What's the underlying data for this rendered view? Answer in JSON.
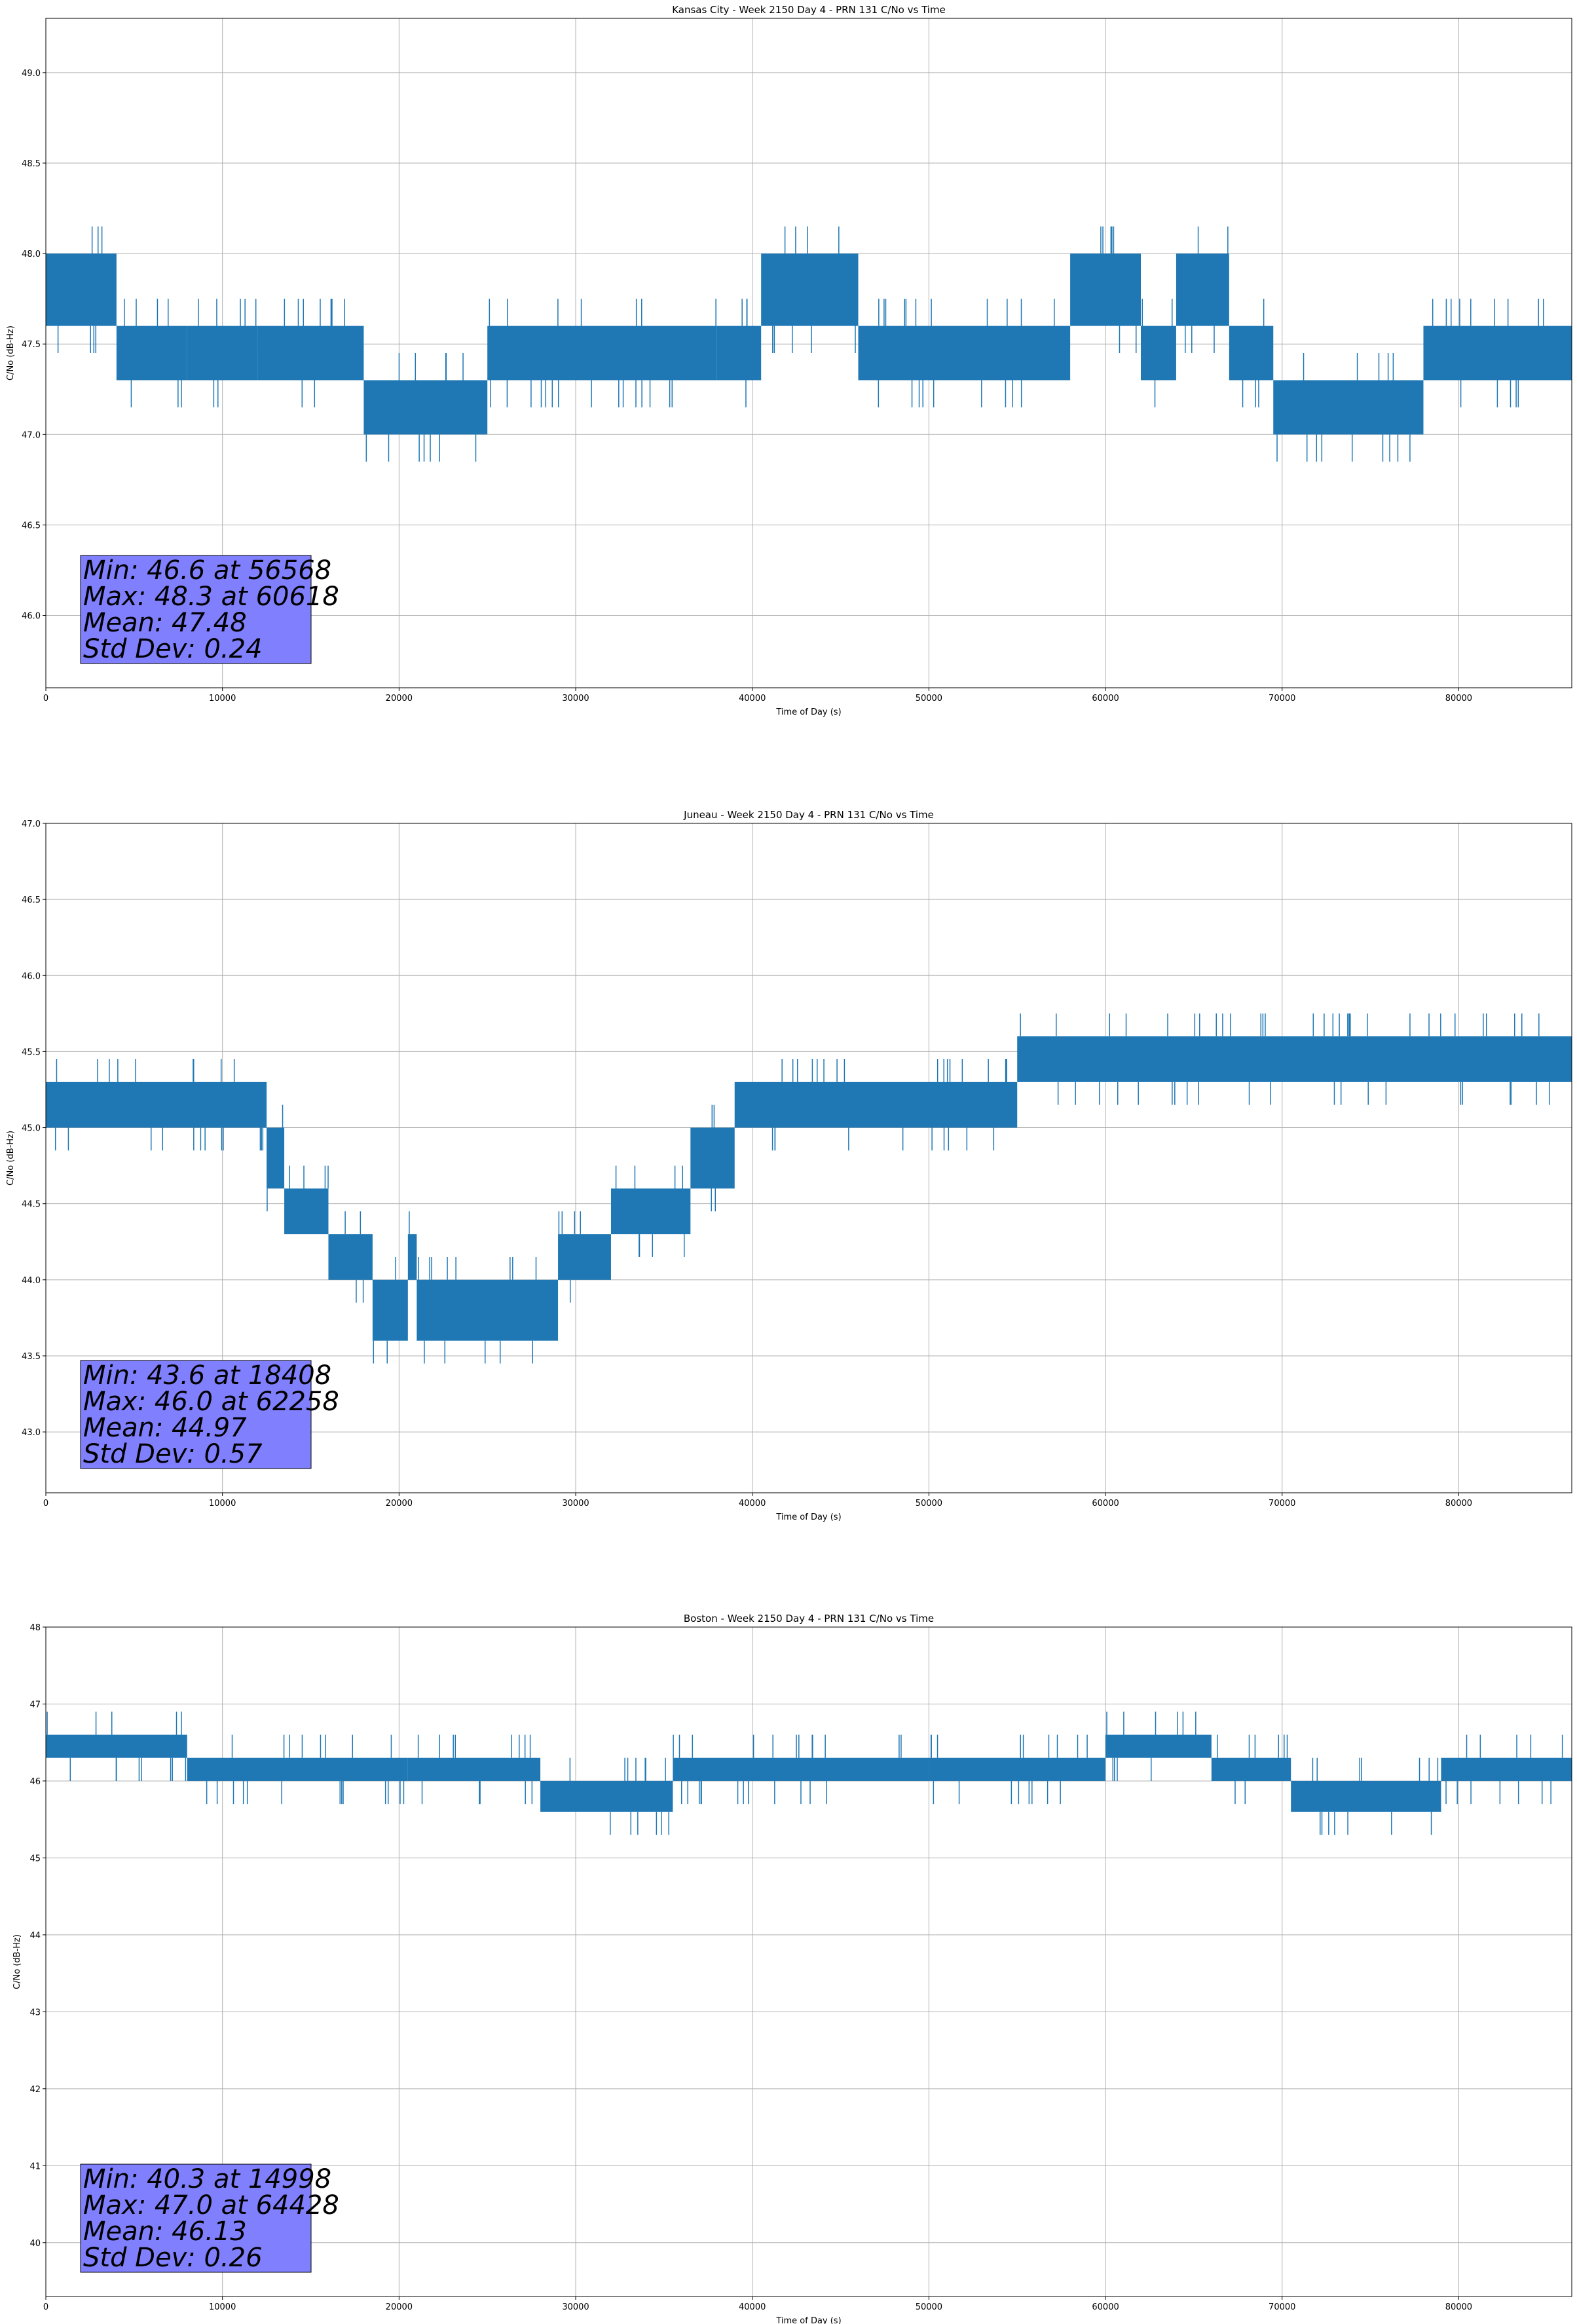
{
  "chart_data": [
    {
      "type": "line",
      "title": "Kansas City - Week 2150 Day 4 - PRN 131 C/No vs Time",
      "xlabel": "Time of Day (s)",
      "ylabel": "C/No (dB-Hz)",
      "xlim": [
        0,
        86400
      ],
      "ylim": [
        45.6,
        49.3
      ],
      "grid": true,
      "xticks": [
        0,
        10000,
        20000,
        30000,
        40000,
        50000,
        60000,
        70000,
        80000
      ],
      "yticks": [
        46.0,
        46.5,
        47.0,
        47.5,
        48.0,
        48.5,
        49.0
      ],
      "ytick_labels": [
        "46.0",
        "46.5",
        "47.0",
        "47.5",
        "48.0",
        "48.5",
        "49.0"
      ],
      "series_color": "#1f77b4",
      "series": [
        {
          "name": "C/No",
          "segments": [
            {
              "x": [
                0,
                4000
              ],
              "low": 47.6,
              "high": 48.0
            },
            {
              "x": [
                4000,
                8000
              ],
              "low": 47.3,
              "high": 47.6
            },
            {
              "x": [
                8000,
                12000
              ],
              "low": 47.3,
              "high": 47.6
            },
            {
              "x": [
                12000,
                18000
              ],
              "low": 47.3,
              "high": 47.6
            },
            {
              "x": [
                18000,
                25000
              ],
              "low": 47.0,
              "high": 47.3
            },
            {
              "x": [
                25000,
                38000
              ],
              "low": 47.3,
              "high": 47.6
            },
            {
              "x": [
                38000,
                40500
              ],
              "low": 47.3,
              "high": 47.6
            },
            {
              "x": [
                40500,
                46000
              ],
              "low": 47.6,
              "high": 48.0
            },
            {
              "x": [
                46000,
                58000
              ],
              "low": 47.3,
              "high": 47.6
            },
            {
              "x": [
                58000,
                62000
              ],
              "low": 47.6,
              "high": 48.0
            },
            {
              "x": [
                62000,
                64000
              ],
              "low": 47.3,
              "high": 47.6
            },
            {
              "x": [
                64000,
                67000
              ],
              "low": 47.6,
              "high": 48.0
            },
            {
              "x": [
                67000,
                69500
              ],
              "low": 47.3,
              "high": 47.6
            },
            {
              "x": [
                69500,
                78000
              ],
              "low": 47.0,
              "high": 47.3
            },
            {
              "x": [
                78000,
                86400
              ],
              "low": 47.3,
              "high": 47.6
            }
          ]
        }
      ],
      "stats": {
        "min": "Min: 46.6 at 56568",
        "max": "Max: 48.3 at 60618",
        "mean": "Mean: 47.48",
        "std": "Std Dev: 0.24"
      }
    },
    {
      "type": "line",
      "title": "Juneau - Week 2150 Day 4 - PRN 131 C/No vs Time",
      "xlabel": "Time of Day (s)",
      "ylabel": "C/No (dB-Hz)",
      "xlim": [
        0,
        86400
      ],
      "ylim": [
        42.6,
        47.0
      ],
      "grid": true,
      "xticks": [
        0,
        10000,
        20000,
        30000,
        40000,
        50000,
        60000,
        70000,
        80000
      ],
      "yticks": [
        43.0,
        43.5,
        44.0,
        44.5,
        45.0,
        45.5,
        46.0,
        46.5,
        47.0
      ],
      "ytick_labels": [
        "43.0",
        "43.5",
        "44.0",
        "44.5",
        "45.0",
        "45.5",
        "46.0",
        "46.5",
        "47.0"
      ],
      "series_color": "#1f77b4",
      "series": [
        {
          "name": "C/No",
          "segments": [
            {
              "x": [
                0,
                12500
              ],
              "low": 45.0,
              "high": 45.3
            },
            {
              "x": [
                12500,
                13500
              ],
              "low": 44.6,
              "high": 45.0
            },
            {
              "x": [
                13500,
                16000
              ],
              "low": 44.3,
              "high": 44.6
            },
            {
              "x": [
                16000,
                18500
              ],
              "low": 44.0,
              "high": 44.3
            },
            {
              "x": [
                18500,
                20500
              ],
              "low": 43.6,
              "high": 44.0
            },
            {
              "x": [
                20500,
                21000
              ],
              "low": 44.0,
              "high": 44.3
            },
            {
              "x": [
                21000,
                29000
              ],
              "low": 43.6,
              "high": 44.0
            },
            {
              "x": [
                29000,
                32000
              ],
              "low": 44.0,
              "high": 44.3
            },
            {
              "x": [
                32000,
                36500
              ],
              "low": 44.3,
              "high": 44.6
            },
            {
              "x": [
                36500,
                39000
              ],
              "low": 44.6,
              "high": 45.0
            },
            {
              "x": [
                39000,
                55000
              ],
              "low": 45.0,
              "high": 45.3
            },
            {
              "x": [
                55000,
                86400
              ],
              "low": 45.3,
              "high": 45.6
            }
          ]
        }
      ],
      "stats": {
        "min": "Min: 43.6 at 18408",
        "max": "Max: 46.0 at 62258",
        "mean": "Mean: 44.97",
        "std": "Std Dev: 0.57"
      }
    },
    {
      "type": "line",
      "title": "Boston - Week 2150 Day 4 - PRN 131 C/No vs Time",
      "xlabel": "Time of Day (s)",
      "ylabel": "C/No (dB-Hz)",
      "xlim": [
        0,
        86400
      ],
      "ylim": [
        39.3,
        48.0
      ],
      "grid": true,
      "xticks": [
        0,
        10000,
        20000,
        30000,
        40000,
        50000,
        60000,
        70000,
        80000
      ],
      "yticks": [
        40,
        41,
        42,
        43,
        44,
        45,
        46,
        47,
        48
      ],
      "ytick_labels": [
        "40",
        "41",
        "42",
        "43",
        "44",
        "45",
        "46",
        "47",
        "48"
      ],
      "series_color": "#1f77b4",
      "series": [
        {
          "name": "C/No",
          "segments": [
            {
              "x": [
                0,
                8000
              ],
              "low": 46.3,
              "high": 46.6
            },
            {
              "x": [
                8000,
                20500
              ],
              "low": 46.0,
              "high": 46.3
            },
            {
              "x": [
                20500,
                28000
              ],
              "low": 46.0,
              "high": 46.3
            },
            {
              "x": [
                28000,
                35500
              ],
              "low": 45.6,
              "high": 46.0
            },
            {
              "x": [
                35500,
                50000
              ],
              "low": 46.0,
              "high": 46.3
            },
            {
              "x": [
                50000,
                60000
              ],
              "low": 46.0,
              "high": 46.3
            },
            {
              "x": [
                60000,
                66000
              ],
              "low": 46.3,
              "high": 46.6
            },
            {
              "x": [
                66000,
                70500
              ],
              "low": 46.0,
              "high": 46.3
            },
            {
              "x": [
                70500,
                79000
              ],
              "low": 45.6,
              "high": 46.0
            },
            {
              "x": [
                79000,
                86400
              ],
              "low": 46.0,
              "high": 46.3
            }
          ]
        }
      ],
      "stats": {
        "min": "Min: 40.3 at 14998",
        "max": "Max: 47.0 at 64428",
        "mean": "Mean: 46.13",
        "std": "Std Dev: 0.26"
      }
    }
  ]
}
